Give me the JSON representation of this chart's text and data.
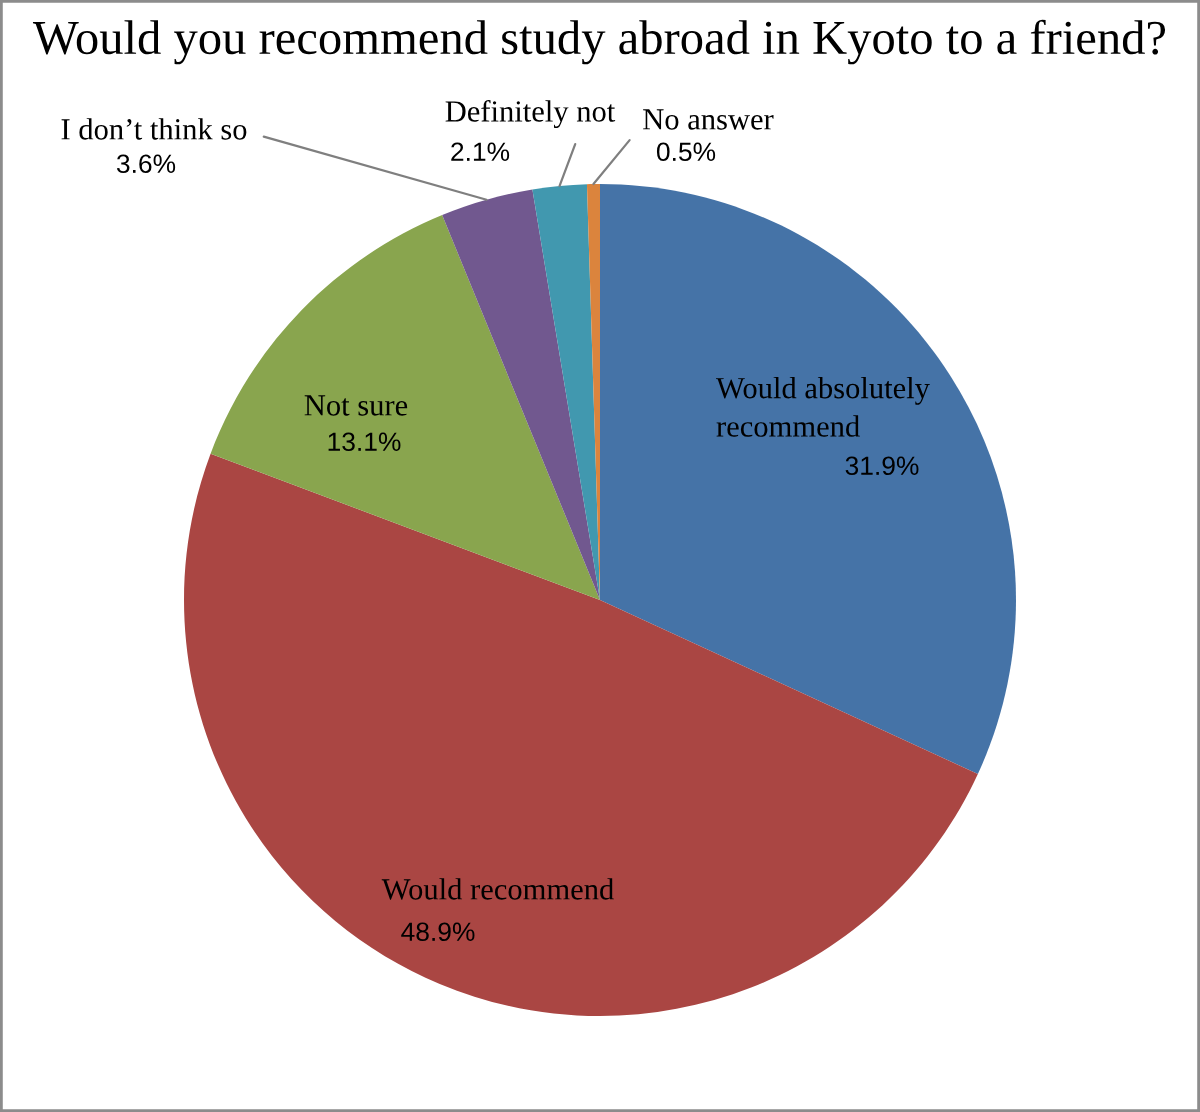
{
  "chart_data": {
    "type": "pie",
    "title": "Would you recommend study abroad in Kyoto to a friend?",
    "categories": [
      "Would absolutely\nrecommend",
      "Would recommend",
      "Not sure",
      "I don’t think so",
      "Definitely not",
      "No answer"
    ],
    "values": [
      31.9,
      48.9,
      13.1,
      3.6,
      2.1,
      0.5
    ],
    "value_labels": [
      "31.9%",
      "48.9%",
      "13.1%",
      "3.6%",
      "2.1%",
      "0.5%"
    ],
    "colors": [
      "#4573a7",
      "#aa4643",
      "#89a54e",
      "#71588f",
      "#4198af",
      "#db843d"
    ]
  }
}
